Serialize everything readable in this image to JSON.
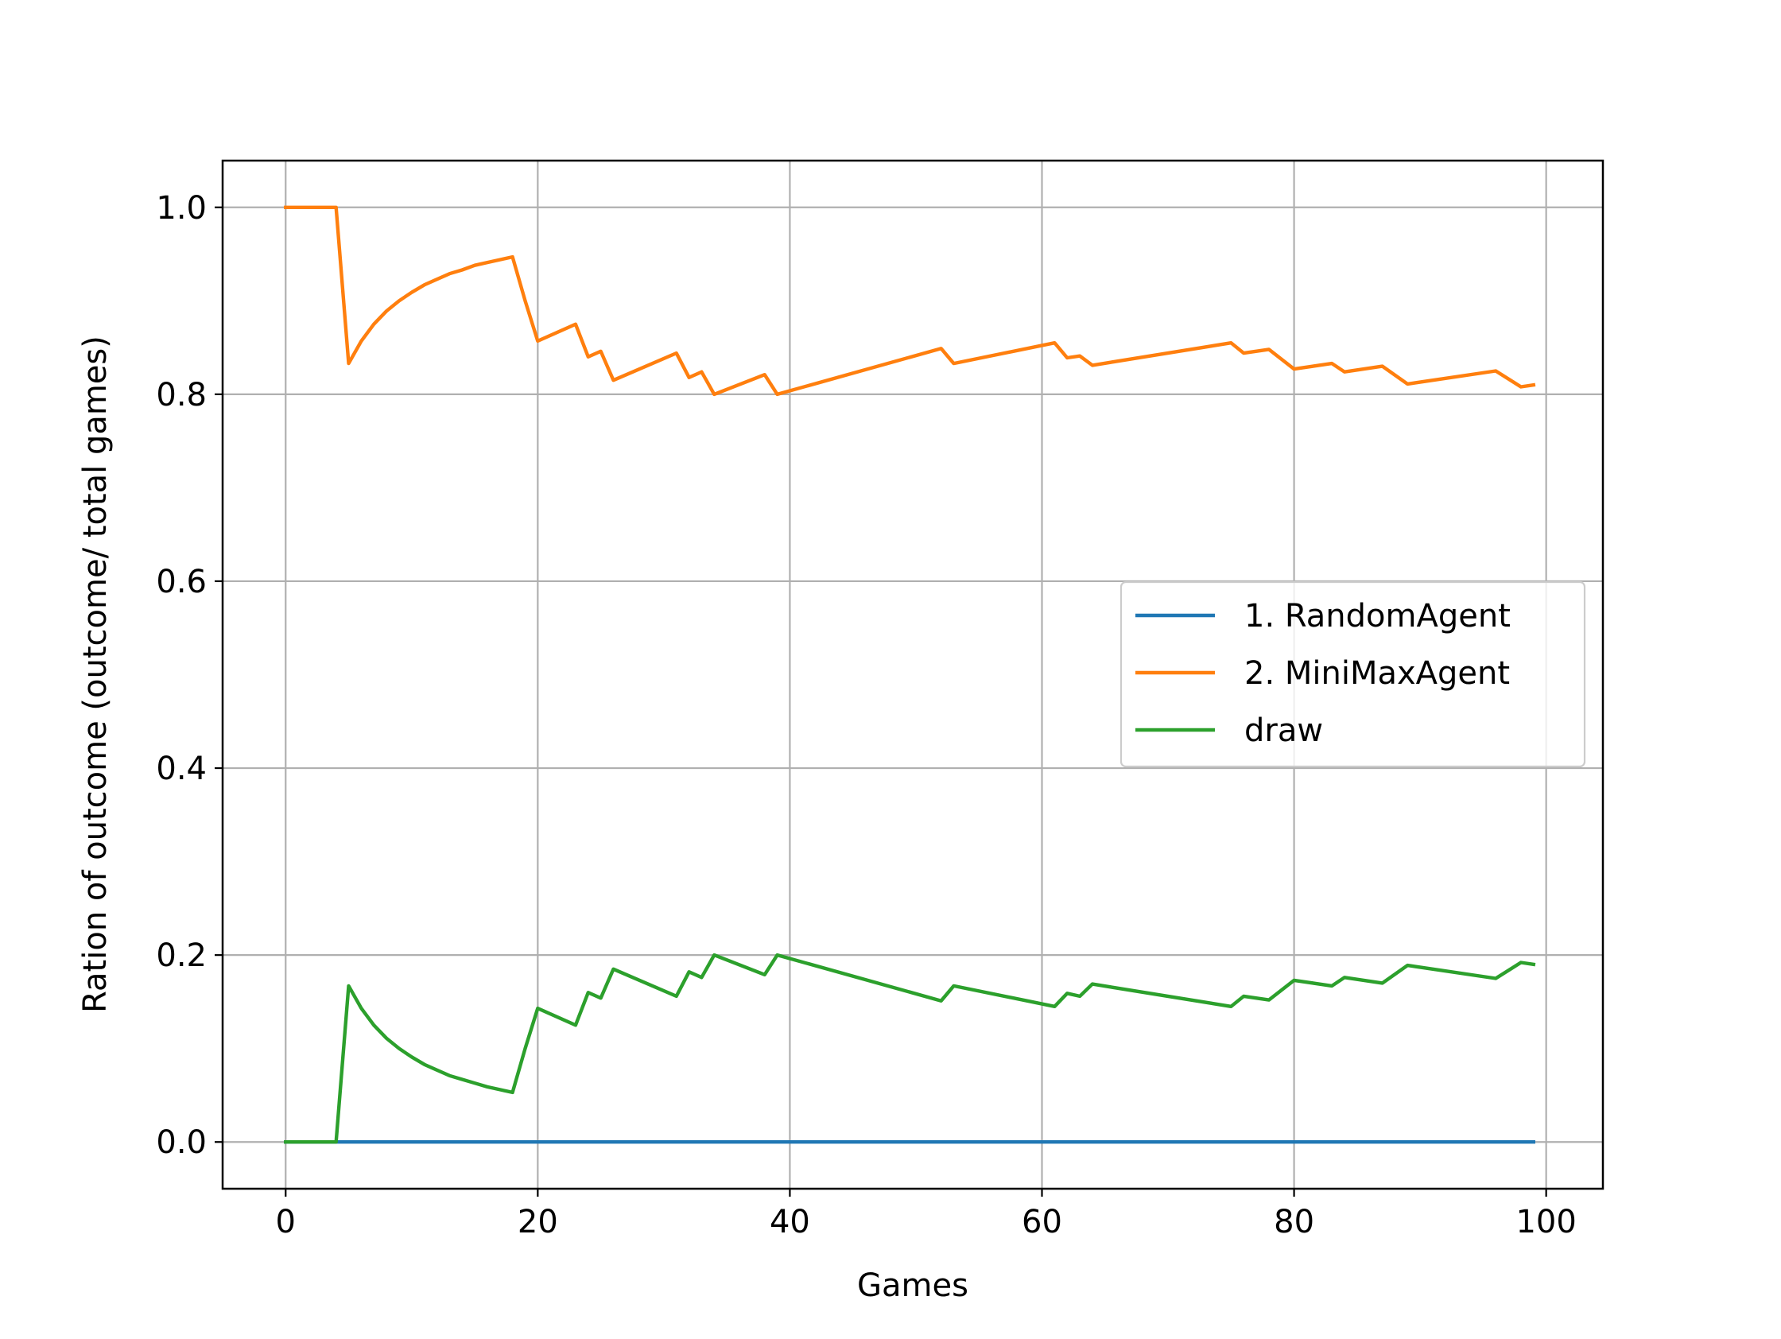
{
  "chart_data": {
    "type": "line",
    "title": "",
    "xlabel": "Games",
    "ylabel": "Ration of outcome (outcome/ total games)",
    "xlim": [
      -5,
      104.5
    ],
    "ylim": [
      -0.05,
      1.05
    ],
    "xticks": [
      0,
      20,
      40,
      60,
      80,
      100
    ],
    "xtick_labels": [
      "0",
      "20",
      "40",
      "60",
      "80",
      "100"
    ],
    "yticks": [
      0.0,
      0.2,
      0.4,
      0.6,
      0.8,
      1.0
    ],
    "ytick_labels": [
      "0.0",
      "0.2",
      "0.4",
      "0.6",
      "0.8",
      "1.0"
    ],
    "grid": true,
    "legend_position": "center-right",
    "series": [
      {
        "name": "1. RandomAgent",
        "color": "#1f77b4",
        "x": [
          0,
          99
        ],
        "y": [
          0.0,
          0.0
        ]
      },
      {
        "name": "2. MiniMaxAgent",
        "color": "#ff7f0e",
        "x": [
          0,
          4,
          5,
          6,
          7,
          8,
          9,
          10,
          11,
          12,
          13,
          14,
          15,
          16,
          17,
          18,
          19,
          20,
          23,
          24,
          25,
          26,
          31,
          32,
          33,
          34,
          38,
          39,
          52,
          53,
          61,
          62,
          63,
          64,
          75,
          76,
          78,
          80,
          83,
          84,
          87,
          89,
          96,
          98,
          99
        ],
        "y": [
          1.0,
          1.0,
          0.833,
          0.857,
          0.875,
          0.889,
          0.9,
          0.909,
          0.917,
          0.923,
          0.929,
          0.933,
          0.938,
          0.941,
          0.944,
          0.947,
          0.9,
          0.857,
          0.875,
          0.84,
          0.846,
          0.815,
          0.844,
          0.818,
          0.824,
          0.8,
          0.821,
          0.8,
          0.849,
          0.833,
          0.855,
          0.839,
          0.841,
          0.831,
          0.855,
          0.844,
          0.848,
          0.827,
          0.833,
          0.824,
          0.83,
          0.811,
          0.825,
          0.808,
          0.81
        ]
      },
      {
        "name": "draw",
        "color": "#2ca02c",
        "x": [
          0,
          4,
          5,
          6,
          7,
          8,
          9,
          10,
          11,
          12,
          13,
          14,
          15,
          16,
          17,
          18,
          19,
          20,
          23,
          24,
          25,
          26,
          31,
          32,
          33,
          34,
          38,
          39,
          52,
          53,
          61,
          62,
          63,
          64,
          75,
          76,
          78,
          80,
          83,
          84,
          87,
          89,
          96,
          98,
          99
        ],
        "y": [
          0.0,
          0.0,
          0.167,
          0.143,
          0.125,
          0.111,
          0.1,
          0.091,
          0.083,
          0.077,
          0.071,
          0.067,
          0.063,
          0.059,
          0.056,
          0.053,
          0.1,
          0.143,
          0.125,
          0.16,
          0.154,
          0.185,
          0.156,
          0.182,
          0.176,
          0.2,
          0.179,
          0.2,
          0.151,
          0.167,
          0.145,
          0.159,
          0.156,
          0.169,
          0.145,
          0.156,
          0.152,
          0.173,
          0.167,
          0.176,
          0.17,
          0.189,
          0.175,
          0.192,
          0.19
        ]
      }
    ]
  }
}
